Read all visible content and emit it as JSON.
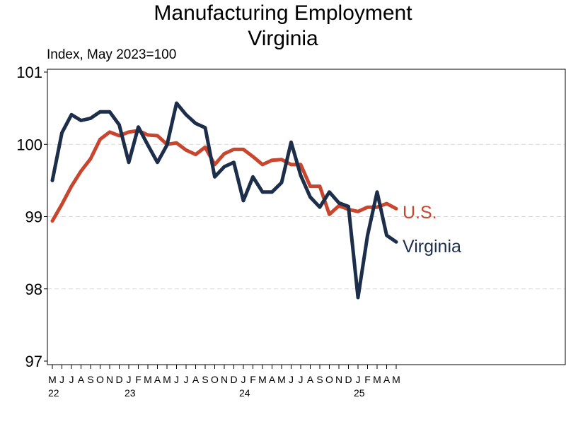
{
  "chart_data": {
    "type": "line",
    "title_line1": "Manufacturing Employment",
    "title_line2": "Virginia",
    "ylabel": "Index, May 2023=100",
    "ylim": [
      97,
      101
    ],
    "yticks": [
      "97",
      "98",
      "99",
      "100",
      "101"
    ],
    "grid": true,
    "month_labels": [
      "M",
      "J",
      "J",
      "A",
      "S",
      "O",
      "N",
      "D",
      "J",
      "F",
      "M",
      "A",
      "M",
      "J",
      "J",
      "A",
      "S",
      "O",
      "N",
      "D",
      "J",
      "F",
      "M",
      "A",
      "M",
      "J",
      "J",
      "A",
      "S",
      "O",
      "N",
      "D",
      "J",
      "F",
      "M",
      "A",
      "M"
    ],
    "year_labels": [
      {
        "label": "22",
        "index": 0
      },
      {
        "label": "23",
        "index": 8
      },
      {
        "label": "24",
        "index": 20
      },
      {
        "label": "25",
        "index": 32
      }
    ],
    "series": [
      {
        "name": "U.S.",
        "color": "#c8452e",
        "values": [
          98.94,
          99.17,
          99.42,
          99.63,
          99.8,
          100.07,
          100.17,
          100.12,
          100.17,
          100.19,
          100.13,
          100.12,
          100.0,
          100.02,
          99.92,
          99.86,
          99.96,
          99.72,
          99.87,
          99.93,
          99.93,
          99.83,
          99.72,
          99.78,
          99.79,
          99.72,
          99.72,
          99.42,
          99.42,
          99.03,
          99.15,
          99.1,
          99.07,
          99.13,
          99.13,
          99.18,
          99.11
        ]
      },
      {
        "name": "Virginia",
        "color": "#1c2e4a",
        "values": [
          99.5,
          100.16,
          100.41,
          100.33,
          100.36,
          100.45,
          100.45,
          100.27,
          99.75,
          100.24,
          99.99,
          99.75,
          99.99,
          100.57,
          100.41,
          100.29,
          100.23,
          99.55,
          99.69,
          99.75,
          99.22,
          99.55,
          99.34,
          99.34,
          99.47,
          100.03,
          99.57,
          99.27,
          99.13,
          99.34,
          99.19,
          99.14,
          97.88,
          98.74,
          99.34,
          98.74,
          98.65
        ]
      }
    ]
  }
}
